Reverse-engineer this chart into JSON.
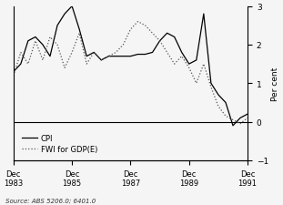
{
  "title": "",
  "per_cent_label": "Per cent",
  "source_text": "Source: ABS 5206.0; 6401.0",
  "legend_cpi": "CPI",
  "legend_fwi": "FWI for GDP(E)",
  "ylim": [
    -1,
    3
  ],
  "yticks": [
    -1,
    0,
    1,
    2,
    3
  ],
  "x_tick_labels": [
    "Dec\n1983",
    "Dec\n1985",
    "Dec\n1987",
    "Dec\n1989",
    "Dec\n1991"
  ],
  "x_tick_positions": [
    0,
    8,
    16,
    24,
    32
  ],
  "cpi_x": [
    0,
    1,
    2,
    3,
    4,
    5,
    6,
    7,
    8,
    9,
    10,
    11,
    12,
    13,
    14,
    15,
    16,
    17,
    18,
    19,
    20,
    21,
    22,
    23,
    24,
    25,
    26,
    27,
    28,
    29,
    30,
    31,
    32
  ],
  "cpi_y": [
    1.3,
    1.5,
    2.1,
    2.2,
    2.0,
    1.7,
    2.5,
    2.8,
    3.0,
    2.4,
    1.7,
    1.8,
    1.6,
    1.7,
    1.7,
    1.7,
    1.7,
    1.75,
    1.75,
    1.8,
    2.1,
    2.3,
    2.2,
    1.8,
    1.5,
    1.6,
    2.8,
    1.0,
    0.7,
    0.5,
    -0.1,
    0.1,
    0.2
  ],
  "fwi_x": [
    0,
    1,
    2,
    3,
    4,
    5,
    6,
    7,
    8,
    9,
    10,
    11,
    12,
    13,
    14,
    15,
    16,
    17,
    18,
    19,
    20,
    21,
    22,
    23,
    24,
    25,
    26,
    27,
    28,
    29,
    30,
    31,
    32
  ],
  "fwi_y": [
    1.2,
    1.8,
    1.5,
    2.1,
    1.6,
    2.2,
    2.0,
    1.4,
    1.8,
    2.3,
    1.5,
    1.8,
    1.6,
    1.7,
    1.8,
    2.0,
    2.4,
    2.6,
    2.5,
    2.3,
    2.1,
    1.8,
    1.5,
    1.7,
    1.4,
    1.0,
    1.5,
    0.9,
    0.4,
    0.15,
    0.05,
    -0.05,
    0.1
  ],
  "background_color": "#f0f0f0",
  "line_color_cpi": "#000000",
  "line_color_fwi": "#555555",
  "zero_line_color": "#000000"
}
